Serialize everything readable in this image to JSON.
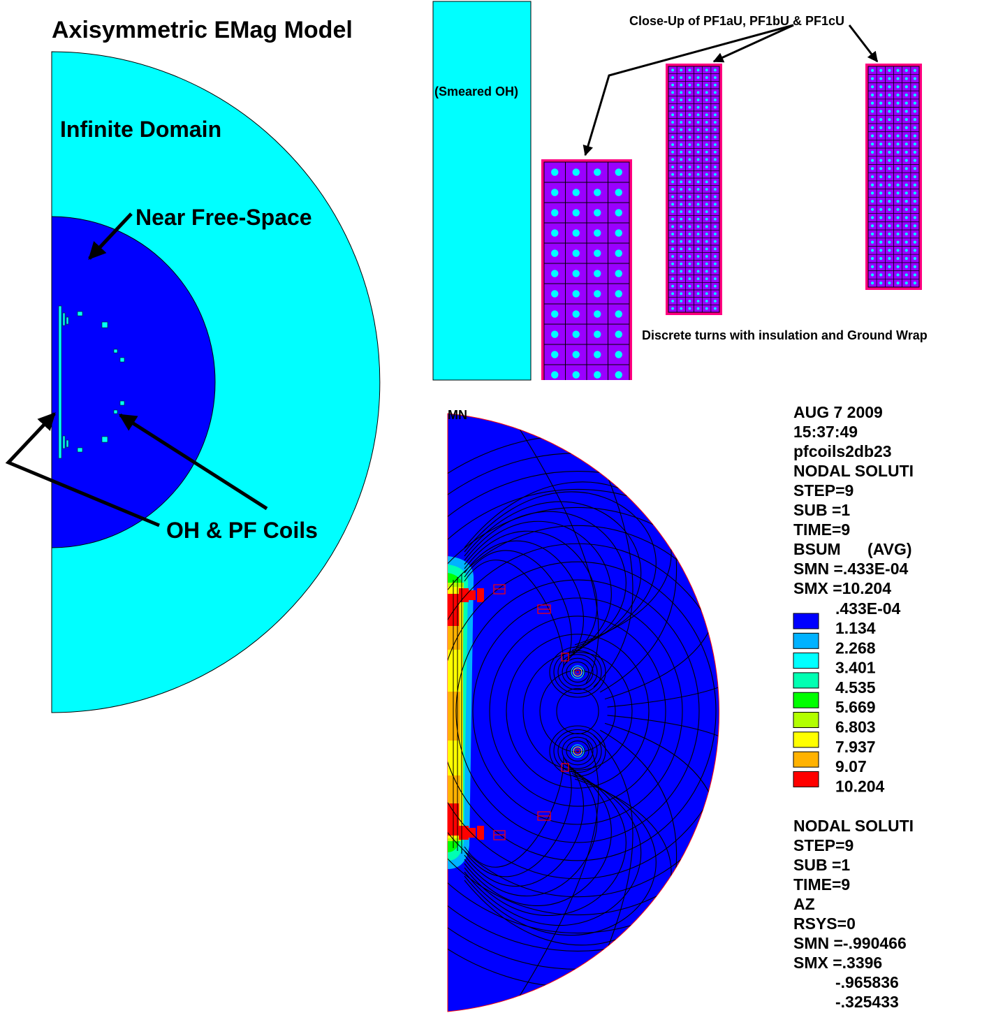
{
  "main_title": "Axisymmetric EMag Model",
  "labels": {
    "infinite_domain": "Infinite Domain",
    "near_free_space": "Near Free-Space",
    "oh_pf_coils": "OH & PF Coils",
    "smeared_oh": "(Smeared OH)",
    "closeup_title": "Close-Up of PF1aU, PF1bU & PF1cU",
    "discrete_turns": "Discrete turns with insulation and Ground Wrap",
    "mn_marker": "MN"
  },
  "colors": {
    "infinite_domain": "#00ffff",
    "near_free_space": "#0000ff",
    "coil_outer": "#ff0080",
    "coil_fill": "#9a00ff",
    "coil_dot": "#00ffff",
    "contour_line": "#000000"
  },
  "closeup_coils": [
    {
      "name": "PF1aU",
      "columns": 4,
      "rows": 11
    },
    {
      "name": "PF1bU",
      "columns": 6,
      "rows": 33
    },
    {
      "name": "PF1cU",
      "columns": 6,
      "rows": 27
    }
  ],
  "ansys_info": {
    "date": "AUG  7 2009",
    "time": "15:37:49",
    "jobname": "pfcoils2db23",
    "solution_type": "NODAL SOLUTI",
    "step": "STEP=9",
    "sub": "SUB =1",
    "time_value": "TIME=9",
    "result": "BSUM      (AVG)",
    "smn": "SMN =.433E-04",
    "smx": "SMX =10.204"
  },
  "legend": {
    "min_label": ".433E-04",
    "levels": [
      {
        "value": "1.134",
        "color": "#0000ff"
      },
      {
        "value": "2.268",
        "color": "#00b2ff"
      },
      {
        "value": "3.401",
        "color": "#00ffff"
      },
      {
        "value": "4.535",
        "color": "#00ffb2"
      },
      {
        "value": "5.669",
        "color": "#00ff00"
      },
      {
        "value": "6.803",
        "color": "#b2ff00"
      },
      {
        "value": "7.937",
        "color": "#ffff00"
      },
      {
        "value": "9.07",
        "color": "#ffb200"
      },
      {
        "value": "10.204",
        "color": "#ff0000"
      }
    ]
  },
  "ansys_info2": {
    "solution_type": "NODAL SOLUTI",
    "step": "STEP=9",
    "sub": "SUB =1",
    "time_value": "TIME=9",
    "result": "AZ",
    "rsys": "RSYS=0",
    "smn": "SMN =-.990466",
    "smx": "SMX =.3396",
    "contour_1": "-.965836",
    "contour_2": "-.325433"
  }
}
